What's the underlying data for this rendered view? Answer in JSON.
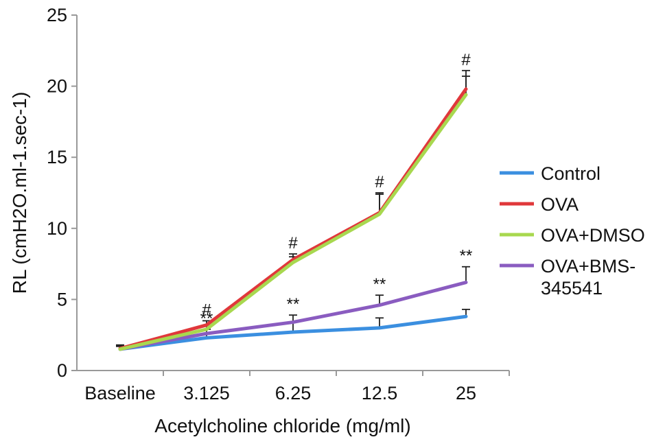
{
  "chart_data": {
    "type": "line",
    "xlabel": "Acetylcholine chloride (mg/ml)",
    "ylabel": "RL (cmH2O.ml-1.sec-1)",
    "ylim": [
      0,
      25
    ],
    "yticks": [
      0,
      5,
      10,
      15,
      20,
      25
    ],
    "categories": [
      "Baseline",
      "3.125",
      "6.25",
      "12.5",
      "25"
    ],
    "grid": false,
    "legend_position": "right",
    "series": [
      {
        "name": "Control",
        "color": "#3b8fe0",
        "values": [
          1.5,
          2.3,
          2.7,
          3.0,
          3.8
        ],
        "error": [
          0.3,
          0.3,
          0.7,
          0.7,
          0.5
        ],
        "annotations": [
          "",
          "",
          "",
          "",
          ""
        ]
      },
      {
        "name": "OVA",
        "color": "#e0383b",
        "values": [
          1.55,
          3.2,
          7.8,
          11.1,
          19.8
        ],
        "error": [
          0.2,
          0.3,
          0.4,
          1.4,
          1.3
        ],
        "annotations": [
          "",
          "#",
          "#",
          "#",
          "#"
        ]
      },
      {
        "name": "OVA+DMSO",
        "color": "#a8d84f",
        "values": [
          1.5,
          2.9,
          7.6,
          11.0,
          19.4
        ],
        "error": [
          0.2,
          0.3,
          0.4,
          1.4,
          1.3
        ],
        "annotations": [
          "",
          "",
          "",
          "",
          ""
        ]
      },
      {
        "name": "OVA+BMS-345541",
        "color": "#8a5cc0",
        "values": [
          1.5,
          2.6,
          3.4,
          4.6,
          6.2
        ],
        "error": [
          0.2,
          0.3,
          0.5,
          0.7,
          1.1
        ],
        "annotations": [
          "",
          "**",
          "**",
          "**",
          "**"
        ]
      }
    ],
    "legend_lines": [
      [
        "Control"
      ],
      [
        "OVA"
      ],
      [
        "OVA+DMSO"
      ],
      [
        "OVA+BMS-",
        "345541"
      ]
    ]
  }
}
